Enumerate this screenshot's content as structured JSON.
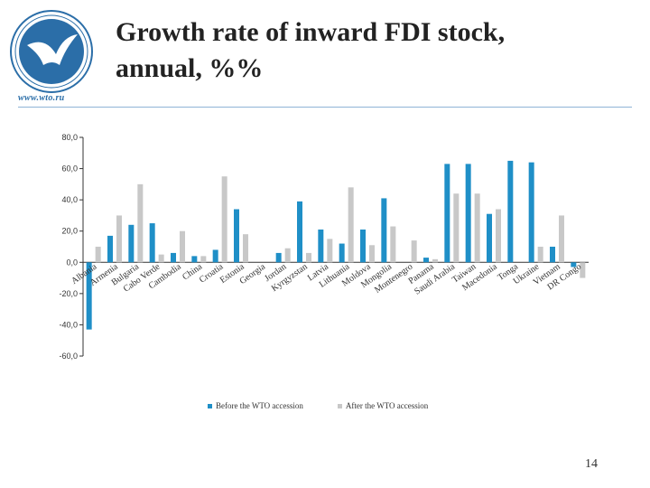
{
  "header": {
    "title_line1": "Growth rate of inward FDI stock,",
    "title_line2": "annual, %%",
    "site_url": "www.wto.ru"
  },
  "colors": {
    "before": "#1f8fc7",
    "after": "#c8c8c8",
    "axis": "#333333",
    "title": "#222222"
  },
  "page_number": "14",
  "chart_data": {
    "type": "bar",
    "title": "",
    "xlabel": "",
    "ylabel": "",
    "ylim": [
      -60,
      80
    ],
    "yticks": [
      "80,0",
      "60,0",
      "40,0",
      "20,0",
      "0,0",
      "-20,0",
      "-40,0",
      "-60,0"
    ],
    "ytick_values": [
      80,
      60,
      40,
      20,
      0,
      -20,
      -40,
      -60
    ],
    "grid": false,
    "legend_position": "bottom",
    "categories": [
      "Albania",
      "Armenia",
      "Bulgaria",
      "Cabo Verde",
      "Cambodia",
      "China",
      "Croatia",
      "Estonia",
      "Georgia",
      "Jordan",
      "Kyrgyzstan",
      "Latvia",
      "Lithuania",
      "Moldova",
      "Mongolia",
      "Montenegro",
      "Panama",
      "Saudi Arabia",
      "Taiwan",
      "Macedonia",
      "Tonga",
      "Ukraine",
      "Vietnam",
      "DR Congo"
    ],
    "series": [
      {
        "name": "Before the WTO accession",
        "values": [
          -43,
          17,
          24,
          25,
          6,
          4,
          8,
          34,
          0,
          6,
          39,
          21,
          12,
          21,
          41,
          0,
          3,
          63,
          63,
          31,
          65,
          64,
          10,
          -3
        ]
      },
      {
        "name": "After the WTO accession",
        "values": [
          10,
          30,
          50,
          5,
          20,
          4,
          55,
          18,
          0,
          9,
          6,
          15,
          48,
          11,
          23,
          14,
          2,
          44,
          44,
          34,
          0,
          10,
          30,
          -10
        ]
      }
    ]
  }
}
